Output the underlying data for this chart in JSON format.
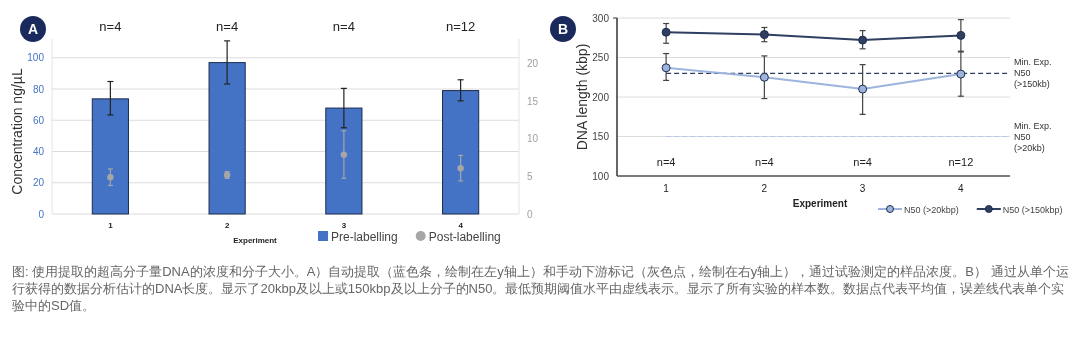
{
  "chart_data": [
    {
      "type": "bar",
      "title": "A",
      "xlabel": "Experiment",
      "ylabel": "Concentration ng/µL",
      "categories": [
        "1",
        "2",
        "3",
        "4"
      ],
      "series": [
        {
          "name": "Pre-labelling",
          "type": "bar",
          "color": "#4472c4",
          "values": [
            73.7,
            96.9,
            67.8,
            79.0
          ],
          "errors": [
            [
              63.4,
              84.8
            ],
            [
              83.2,
              110.8
            ],
            [
              55.2,
              80.4
            ],
            [
              72.4,
              85.9
            ]
          ]
        },
        {
          "name": "Post-labelling",
          "type": "scatter",
          "axis": "y2",
          "color": "#a6a6a6",
          "values": [
            4.9,
            5.2,
            7.9,
            6.1
          ],
          "errors": [
            [
              3.8,
              6.0
            ],
            [
              4.75,
              5.65
            ],
            [
              4.75,
              11.1
            ],
            [
              4.4,
              7.8
            ]
          ]
        }
      ],
      "ylim": [
        0,
        112
      ],
      "yticks": [
        0,
        20,
        40,
        60,
        80,
        100
      ],
      "y2lim": [
        0,
        23.3
      ],
      "y2ticks": [
        0,
        5,
        10,
        15,
        20
      ],
      "grid": "y",
      "legend": "bottom right",
      "annotations": [
        "n=4",
        "n=4",
        "n=4",
        "n=12"
      ]
    },
    {
      "type": "line",
      "title": "B",
      "xlabel": "Experiment",
      "ylabel": "DNA length (kbp)",
      "categories": [
        "1",
        "2",
        "3",
        "4"
      ],
      "marker": "circle",
      "line_style": "solid",
      "series": [
        {
          "name": "N50 (>20kbp)",
          "color": "#9db4dc",
          "values": [
            237,
            225,
            210,
            229
          ],
          "errors": [
            [
              221,
              255
            ],
            [
              198,
              252
            ],
            [
              178,
              241
            ],
            [
              201,
              258
            ]
          ]
        },
        {
          "name": "N50 (>150kbp)",
          "color": "#2e3f60",
          "values": [
            282,
            279,
            272,
            278
          ],
          "errors": [
            [
              268,
              293
            ],
            [
              270,
              288
            ],
            [
              261,
              284
            ],
            [
              257,
              298
            ]
          ]
        }
      ],
      "ylim": [
        100,
        300
      ],
      "yticks": [
        100,
        150,
        200,
        250,
        300
      ],
      "grid": "y",
      "legend": "bottom right",
      "ref_lines": [
        {
          "axis": "y",
          "value": 230,
          "label": "Min. Exp. N50 (>150kb)",
          "color": "#2e3f60",
          "line_style": "dashed"
        },
        {
          "axis": "y",
          "value": 150,
          "label": "Min. Exp. N50 (>20kb)",
          "color": "#b4c7e7",
          "line_style": "dashed"
        }
      ],
      "annotations": [
        "n=4",
        "n=4",
        "n=4",
        "n=12"
      ]
    },
    {
      "type": "other",
      "annotations": [
        "图: 使用提取的超高分子量DNA的浓度和分子大小。A）自动提取（蓝色条，绘制在左y轴上）和手动下游标记（灰色点，绘制在右y轴上），通过试验测定的样品浓度。B） 通过从单个运行获得的数据分析估计的DNA长度。显示了20kbp及以上或150kbp及以上分子的N50。最低预期阈值水平由虚线表示。显示了所有实验的样本数。数据点代表平均值，误差线代表单个实验中的SD值。"
      ]
    }
  ]
}
